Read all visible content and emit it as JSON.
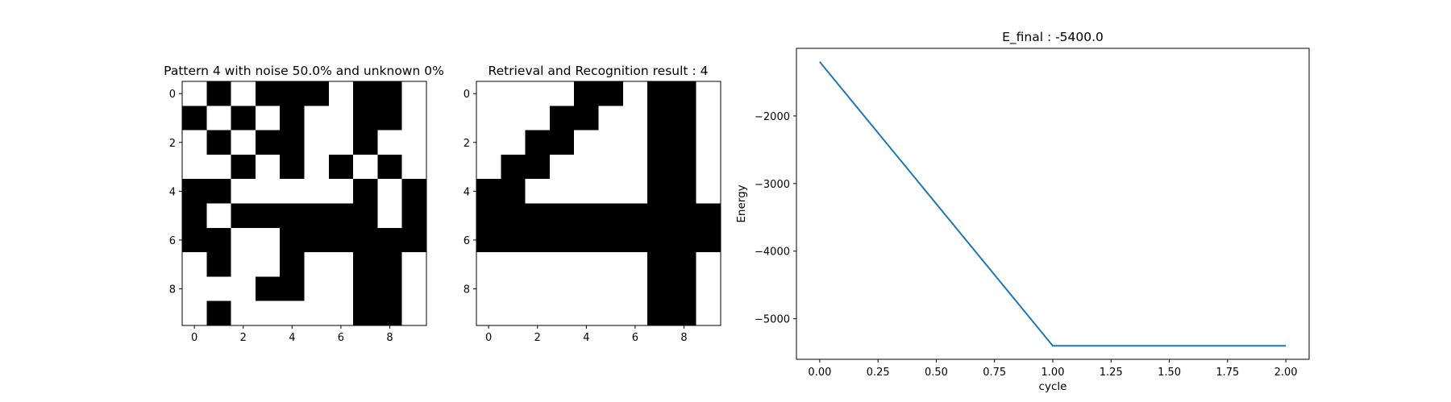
{
  "chart_data": [
    {
      "type": "heatmap",
      "title": "Pattern 4 with noise 50.0% and unknown 0%",
      "colormap": {
        "0": "#ffffff",
        "1": "#000000"
      },
      "xticks": [
        0,
        2,
        4,
        6,
        8
      ],
      "yticks": [
        0,
        2,
        4,
        6,
        8
      ],
      "grid": [
        [
          0,
          1,
          0,
          1,
          1,
          1,
          0,
          1,
          1,
          0
        ],
        [
          1,
          0,
          1,
          0,
          1,
          0,
          0,
          1,
          1,
          0
        ],
        [
          0,
          1,
          0,
          1,
          1,
          0,
          0,
          1,
          0,
          0
        ],
        [
          0,
          0,
          1,
          0,
          1,
          0,
          1,
          0,
          1,
          0
        ],
        [
          1,
          1,
          0,
          0,
          0,
          0,
          0,
          1,
          0,
          1
        ],
        [
          1,
          0,
          1,
          1,
          1,
          1,
          1,
          1,
          0,
          1
        ],
        [
          1,
          1,
          0,
          0,
          1,
          1,
          1,
          1,
          1,
          1
        ],
        [
          0,
          1,
          0,
          0,
          1,
          0,
          0,
          1,
          1,
          0
        ],
        [
          0,
          0,
          0,
          1,
          1,
          0,
          0,
          1,
          1,
          0
        ],
        [
          0,
          1,
          0,
          0,
          0,
          0,
          0,
          1,
          1,
          0
        ]
      ]
    },
    {
      "type": "heatmap",
      "title": "Retrieval and Recognition result : 4",
      "colormap": {
        "0": "#ffffff",
        "1": "#000000"
      },
      "xticks": [
        0,
        2,
        4,
        6,
        8
      ],
      "yticks": [
        0,
        2,
        4,
        6,
        8
      ],
      "grid": [
        [
          0,
          0,
          0,
          0,
          1,
          1,
          0,
          1,
          1,
          0
        ],
        [
          0,
          0,
          0,
          1,
          1,
          0,
          0,
          1,
          1,
          0
        ],
        [
          0,
          0,
          1,
          1,
          0,
          0,
          0,
          1,
          1,
          0
        ],
        [
          0,
          1,
          1,
          0,
          0,
          0,
          0,
          1,
          1,
          0
        ],
        [
          1,
          1,
          0,
          0,
          0,
          0,
          0,
          1,
          1,
          0
        ],
        [
          1,
          1,
          1,
          1,
          1,
          1,
          1,
          1,
          1,
          1
        ],
        [
          1,
          1,
          1,
          1,
          1,
          1,
          1,
          1,
          1,
          1
        ],
        [
          0,
          0,
          0,
          0,
          0,
          0,
          0,
          1,
          1,
          0
        ],
        [
          0,
          0,
          0,
          0,
          0,
          0,
          0,
          1,
          1,
          0
        ],
        [
          0,
          0,
          0,
          0,
          0,
          0,
          0,
          1,
          1,
          0
        ]
      ]
    },
    {
      "type": "line",
      "title": "E_final : -5400.0",
      "xlabel": "cycle",
      "ylabel": "Energy",
      "xlim": [
        -0.1,
        2.1
      ],
      "ylim": [
        -5600,
        -1000
      ],
      "xticks": [
        0.0,
        0.25,
        0.5,
        0.75,
        1.0,
        1.25,
        1.5,
        1.75,
        2.0
      ],
      "xtick_labels": [
        "0.00",
        "0.25",
        "0.50",
        "0.75",
        "1.00",
        "1.25",
        "1.50",
        "1.75",
        "2.00"
      ],
      "yticks": [
        -5000,
        -4000,
        -3000,
        -2000
      ],
      "ytick_labels": [
        "−5000",
        "−4000",
        "−3000",
        "−2000"
      ],
      "line_color": "#1f77b4",
      "series": [
        {
          "x": [
            0,
            1,
            2
          ],
          "y": [
            -1200,
            -5400,
            -5400
          ]
        }
      ]
    }
  ]
}
